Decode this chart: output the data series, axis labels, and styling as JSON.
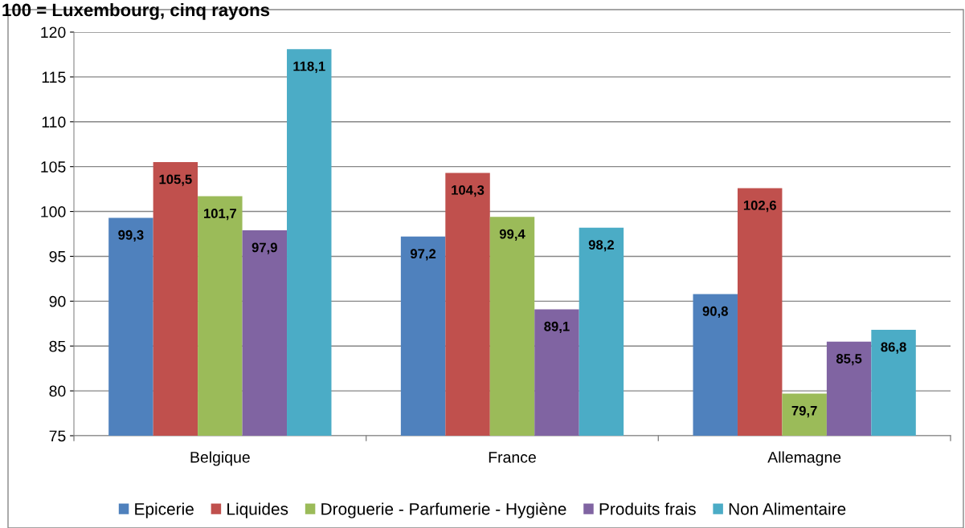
{
  "chart_data": {
    "type": "bar",
    "title": "100 = Luxembourg, cinq rayons",
    "categories": [
      "Belgique",
      "France",
      "Allemagne"
    ],
    "series": [
      {
        "name": "Epicerie",
        "color": "#4f81bd",
        "values": [
          99.3,
          97.2,
          90.8
        ],
        "value_labels": [
          "99,3",
          "97,2",
          "90,8"
        ]
      },
      {
        "name": "Liquides",
        "color": "#c0504d",
        "values": [
          105.5,
          104.3,
          102.6
        ],
        "value_labels": [
          "105,5",
          "104,3",
          "102,6"
        ]
      },
      {
        "name": "Droguerie - Parfumerie - Hygiène",
        "color": "#9bbb59",
        "values": [
          101.7,
          99.4,
          79.7
        ],
        "value_labels": [
          "101,7",
          "99,4",
          "79,7"
        ]
      },
      {
        "name": "Produits frais",
        "color": "#8064a2",
        "values": [
          97.9,
          89.1,
          85.5
        ],
        "value_labels": [
          "97,9",
          "89,1",
          "85,5"
        ]
      },
      {
        "name": "Non Alimentaire",
        "color": "#4bacc6",
        "values": [
          118.1,
          98.2,
          86.8
        ],
        "value_labels": [
          "118,1",
          "98,2",
          "86,8"
        ]
      }
    ],
    "ylim": [
      75,
      120
    ],
    "yticks": [
      75,
      80,
      85,
      90,
      95,
      100,
      105,
      110,
      115,
      120
    ],
    "grid": "y",
    "legend": "bottom"
  }
}
